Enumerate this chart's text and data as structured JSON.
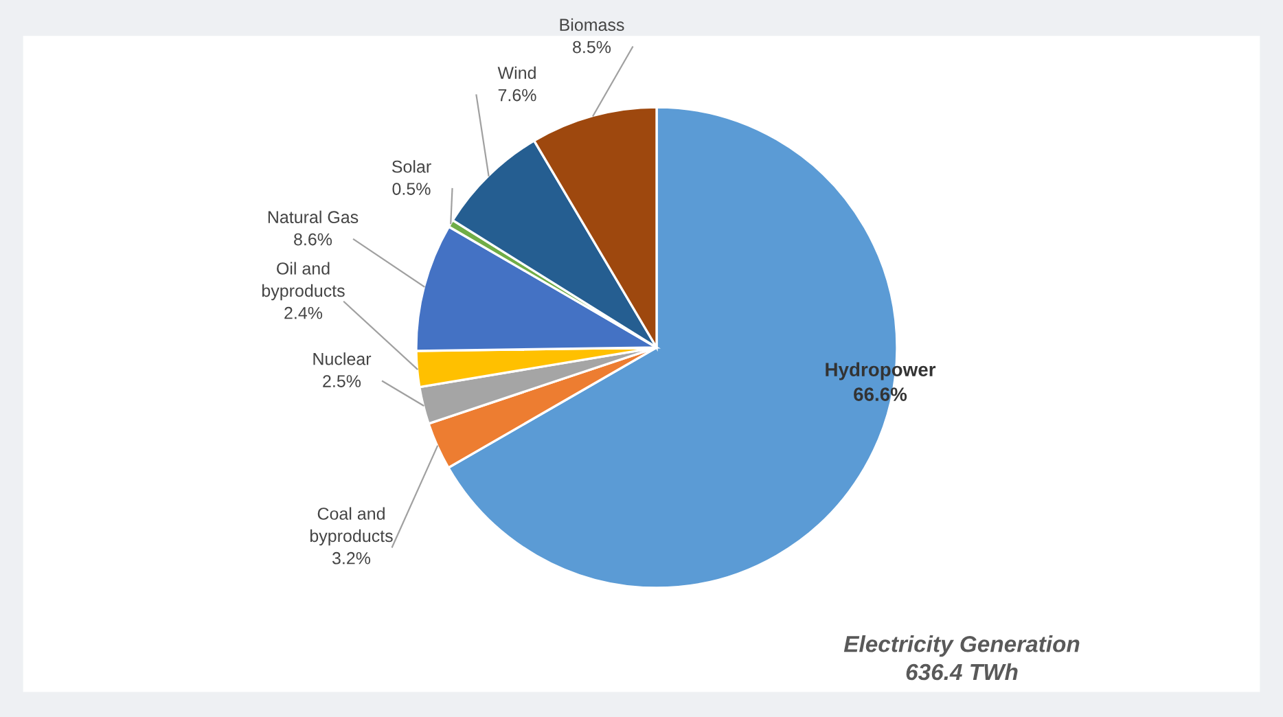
{
  "chart_data": {
    "type": "pie",
    "title": "Electricity Generation\n636.4 TWh",
    "categories": [
      "Hydropower",
      "Coal and\nbyproducts",
      "Nuclear",
      "Oil and\nbyproducts",
      "Natural Gas",
      "Solar",
      "Wind",
      "Biomass"
    ],
    "values": [
      66.6,
      3.2,
      2.5,
      2.4,
      8.6,
      0.5,
      7.6,
      8.5
    ],
    "value_labels": [
      "66.6%",
      "3.2%",
      "2.5%",
      "2.4%",
      "8.6%",
      "0.5%",
      "7.6%",
      "8.5%"
    ],
    "colors": [
      "#5b9bd5",
      "#ed7d31",
      "#a5a5a5",
      "#ffc000",
      "#4472c4",
      "#70ad47",
      "#255e91",
      "#9e480e"
    ],
    "legend": false
  }
}
